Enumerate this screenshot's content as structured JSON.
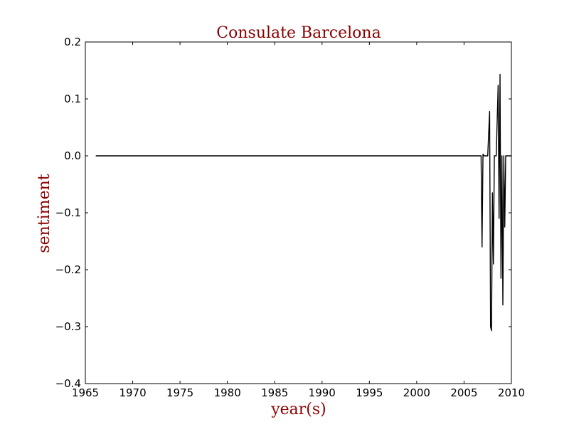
{
  "colors": {
    "title": "#8b0000",
    "axis_label": "#8b0000",
    "line": "#000000",
    "frame": "#000000",
    "background": "#ffffff"
  },
  "chart_data": {
    "type": "line",
    "title": "Consulate Barcelona",
    "xlabel": "year(s)",
    "ylabel": "sentiment",
    "xlim": [
      1965,
      2010
    ],
    "ylim": [
      -0.4,
      0.2
    ],
    "grid": false,
    "legend": "none",
    "xticks": [
      1965,
      1970,
      1975,
      1980,
      1985,
      1990,
      1995,
      2000,
      2005,
      2010
    ],
    "xtick_labels": [
      "1965",
      "1970",
      "1975",
      "1980",
      "1985",
      "1990",
      "1995",
      "2000",
      "2005",
      "2010"
    ],
    "yticks": [
      -0.4,
      -0.3,
      -0.2,
      -0.1,
      0.0,
      0.1,
      0.2
    ],
    "ytick_labels": [
      "−0.4",
      "−0.3",
      "−0.2",
      "−0.1",
      "0.0",
      "0.1",
      "0.2"
    ],
    "series": [
      {
        "x": [
          1966.1,
          2006.8,
          2006.9,
          2007.0,
          2007.1,
          2007.5,
          2007.7,
          2007.8,
          2007.9,
          2008.0,
          2008.1,
          2008.2,
          2008.4,
          2008.6,
          2008.7,
          2008.8,
          2008.9,
          2009.0,
          2009.1,
          2009.2,
          2009.3,
          2009.4,
          2009.5,
          2009.6,
          2009.8,
          2010.0
        ],
        "y": [
          0.0,
          0.0,
          -0.16,
          0.003,
          0.0,
          0.0,
          0.078,
          -0.3,
          -0.307,
          -0.065,
          -0.19,
          0.0,
          0.0,
          0.124,
          -0.11,
          0.143,
          -0.215,
          0.0,
          -0.262,
          0.0,
          -0.125,
          0.0,
          0.0,
          0.0,
          0.0,
          0.0
        ]
      }
    ]
  }
}
